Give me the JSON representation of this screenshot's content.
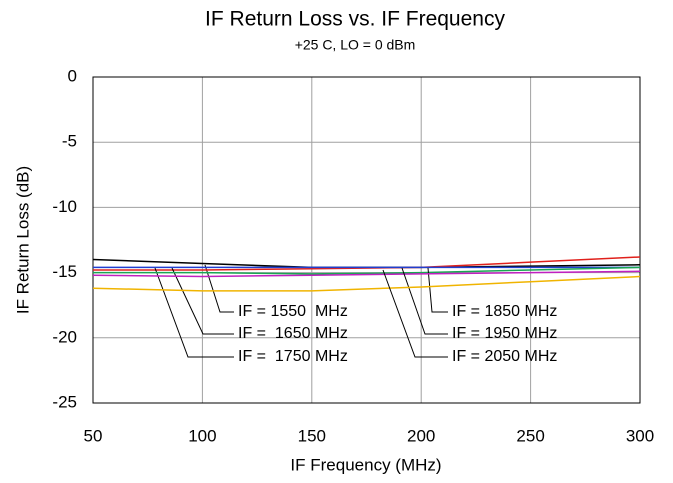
{
  "chart_data": {
    "type": "line",
    "title": "IF Return Loss vs. IF Frequency",
    "subtitle": "+25 C, LO = 0 dBm",
    "x_label": "IF Frequency (MHz)",
    "y_label": "IF Return Loss (dB)",
    "x": [
      50,
      100,
      150,
      200,
      250,
      300
    ],
    "series": [
      {
        "name": "IF = 1550  MHz",
        "color": "#000000",
        "values": [
          -14.0,
          -14.3,
          -14.6,
          -14.6,
          -14.5,
          -14.4
        ]
      },
      {
        "name": "IF =  1650 MHz",
        "color": "#e0201b",
        "values": [
          -14.8,
          -14.8,
          -14.7,
          -14.6,
          -14.2,
          -13.8
        ]
      },
      {
        "name": "IF =  1750 MHz",
        "color": "#1f3fd0",
        "values": [
          -14.6,
          -14.6,
          -14.6,
          -14.6,
          -14.6,
          -14.6
        ]
      },
      {
        "name": "IF = 1850 MHz",
        "color": "#1aa653",
        "values": [
          -15.0,
          -15.0,
          -15.1,
          -15.0,
          -14.8,
          -14.6
        ]
      },
      {
        "name": "IF = 1950 MHz",
        "color": "#c020c0",
        "values": [
          -15.2,
          -15.3,
          -15.2,
          -15.1,
          -15.0,
          -14.9
        ]
      },
      {
        "name": "IF = 2050 MHz",
        "color": "#f0b400",
        "values": [
          -16.2,
          -16.4,
          -16.4,
          -16.1,
          -15.7,
          -15.3
        ]
      }
    ],
    "xlim": [
      50,
      300
    ],
    "xticks": [
      50,
      100,
      150,
      200,
      250,
      300
    ],
    "ylim": [
      -25,
      0
    ],
    "yticks": [
      -25,
      -20,
      -15,
      -10,
      -5,
      0
    ],
    "grid": true
  }
}
